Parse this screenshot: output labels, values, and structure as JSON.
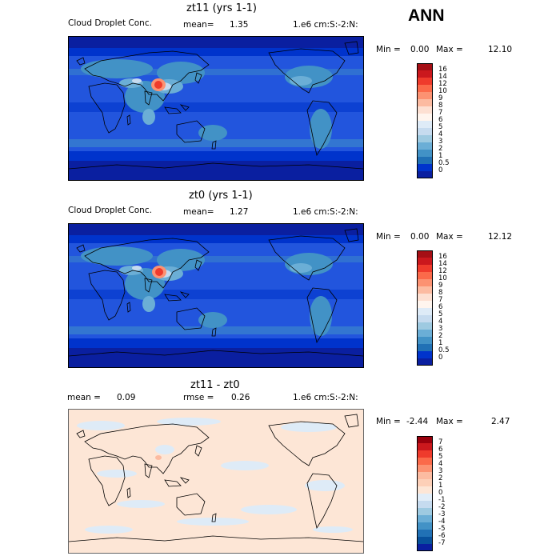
{
  "season": "ANN",
  "panels": [
    {
      "title": "zt11 (yrs 1-1)",
      "left_text": "Cloud Droplet Conc.",
      "mean_label": "mean=",
      "mean_value": "1.35",
      "units": "1.e6 cm:S:-2:N:",
      "min_label": "Min =",
      "min_value": "0.00",
      "max_label": "Max =",
      "max_value": "12.10",
      "levels": [
        "16",
        "14",
        "12",
        "10",
        "9",
        "8",
        "7",
        "6",
        "5",
        "4",
        "3",
        "2",
        "1",
        "0.5",
        "0"
      ],
      "colors": [
        "#a50f15",
        "#cb181d",
        "#ef3b2c",
        "#fb6a4a",
        "#fc9272",
        "#fcbba1",
        "#fde0d2",
        "#fff5ee",
        "#deebf7",
        "#c6dbef",
        "#9ecae1",
        "#6baed6",
        "#4292c6",
        "#2171b5",
        "#0033cc",
        "#0a1fa0"
      ]
    },
    {
      "title": "zt0 (yrs 1-1)",
      "left_text": "Cloud Droplet Conc.",
      "mean_label": "mean=",
      "mean_value": "1.27",
      "units": "1.e6 cm:S:-2:N:",
      "min_label": "Min =",
      "min_value": "0.00",
      "max_label": "Max =",
      "max_value": "12.12",
      "levels": [
        "16",
        "14",
        "12",
        "10",
        "9",
        "8",
        "7",
        "6",
        "5",
        "4",
        "3",
        "2",
        "1",
        "0.5",
        "0"
      ],
      "colors": [
        "#a50f15",
        "#cb181d",
        "#ef3b2c",
        "#fb6a4a",
        "#fc9272",
        "#fcbba1",
        "#fde0d2",
        "#fff5ee",
        "#deebf7",
        "#c6dbef",
        "#9ecae1",
        "#6baed6",
        "#4292c6",
        "#2171b5",
        "#0033cc",
        "#0a1fa0"
      ]
    },
    {
      "title": "zt11 - zt0",
      "left_text": "",
      "mean_label": "mean =",
      "mean_value": "0.09",
      "rmse_label": "rmse =",
      "rmse_value": "0.26",
      "units": "1.e6 cm:S:-2:N:",
      "min_label": "Min =",
      "min_value": "-2.44",
      "max_label": "Max =",
      "max_value": "2.47",
      "levels": [
        "7",
        "6",
        "5",
        "4",
        "3",
        "2",
        "1",
        "0",
        "-1",
        "-2",
        "-3",
        "-4",
        "-5",
        "-6",
        "-7"
      ],
      "colors": [
        "#99000d",
        "#cb181d",
        "#ef3b2c",
        "#fb6a4a",
        "#fc9272",
        "#fcbba1",
        "#fdd0b8",
        "#fde6d6",
        "#e1edf8",
        "#c6dbef",
        "#9ecae1",
        "#6baed6",
        "#4292c6",
        "#2171b5",
        "#08519c",
        "#0a1fa0"
      ]
    }
  ]
}
